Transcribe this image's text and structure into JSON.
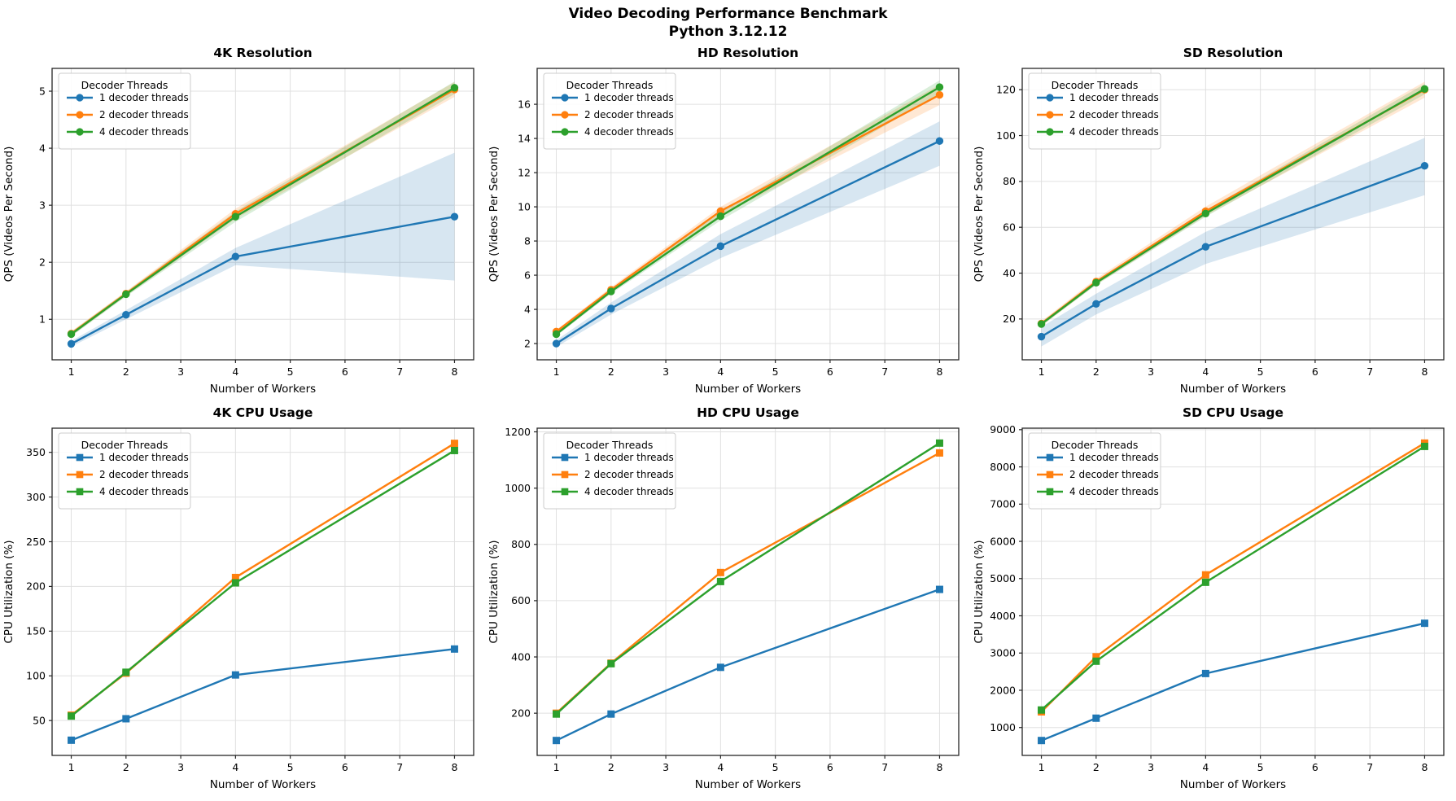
{
  "figure": {
    "suptitle_line1": "Video Decoding Performance Benchmark",
    "suptitle_line2": "Python 3.12.12"
  },
  "palette": {
    "thread1": "#1f77b4",
    "thread2": "#ff7f0e",
    "thread4": "#2ca02c",
    "grid": "#e0e0e0",
    "spine": "#262626",
    "text": "#000000",
    "legend_border": "#cccccc"
  },
  "legend": {
    "title": "Decoder Threads",
    "entries": [
      "1 decoder threads",
      "2 decoder threads",
      "4 decoder threads"
    ]
  },
  "chart_data": [
    {
      "type": "line",
      "title": "4K Resolution",
      "xlabel": "Number of Workers",
      "ylabel": "QPS (Videos Per Second)",
      "marker": "circle",
      "x": [
        1,
        2,
        4,
        8
      ],
      "xticks": [
        1,
        2,
        3,
        4,
        5,
        6,
        7,
        8
      ],
      "xlim": [
        0.65,
        8.35
      ],
      "yticks": [
        1,
        2,
        3,
        4,
        5
      ],
      "ylim": [
        0.29,
        5.4
      ],
      "legend_title": "Decoder Threads",
      "series": [
        {
          "name": "1 decoder threads",
          "color": "#1f77b4",
          "values": [
            0.57,
            1.08,
            2.1,
            2.8
          ],
          "band_low": [
            0.52,
            1.0,
            1.95,
            1.68
          ],
          "band_high": [
            0.62,
            1.16,
            2.25,
            3.92
          ]
        },
        {
          "name": "2 decoder threads",
          "color": "#ff7f0e",
          "values": [
            0.75,
            1.45,
            2.85,
            5.03
          ],
          "band_low": [
            0.71,
            1.41,
            2.76,
            4.9
          ],
          "band_high": [
            0.79,
            1.49,
            2.94,
            5.16
          ]
        },
        {
          "name": "4 decoder threads",
          "color": "#2ca02c",
          "values": [
            0.74,
            1.44,
            2.8,
            5.06
          ],
          "band_low": [
            0.7,
            1.4,
            2.71,
            4.95
          ],
          "band_high": [
            0.78,
            1.48,
            2.89,
            5.17
          ]
        }
      ]
    },
    {
      "type": "line",
      "title": "HD Resolution",
      "xlabel": "Number of Workers",
      "ylabel": "QPS (Videos Per Second)",
      "marker": "circle",
      "x": [
        1,
        2,
        4,
        8
      ],
      "xticks": [
        1,
        2,
        3,
        4,
        5,
        6,
        7,
        8
      ],
      "xlim": [
        0.65,
        8.35
      ],
      "yticks": [
        2,
        4,
        6,
        8,
        10,
        12,
        14,
        16
      ],
      "ylim": [
        1.05,
        18.1
      ],
      "legend_title": "Decoder Threads",
      "series": [
        {
          "name": "1 decoder threads",
          "color": "#1f77b4",
          "values": [
            2.0,
            4.05,
            7.7,
            13.85
          ],
          "band_low": [
            1.8,
            3.7,
            7.0,
            12.4
          ],
          "band_high": [
            2.2,
            4.4,
            8.4,
            15.0
          ]
        },
        {
          "name": "2 decoder threads",
          "color": "#ff7f0e",
          "values": [
            2.7,
            5.15,
            9.75,
            16.55
          ],
          "band_low": [
            2.6,
            5.0,
            9.5,
            15.95
          ],
          "band_high": [
            2.8,
            5.3,
            10.0,
            17.15
          ]
        },
        {
          "name": "4 decoder threads",
          "color": "#2ca02c",
          "values": [
            2.55,
            5.05,
            9.45,
            17.0
          ],
          "band_low": [
            2.45,
            4.92,
            9.2,
            16.6
          ],
          "band_high": [
            2.65,
            5.18,
            9.7,
            17.4
          ]
        }
      ]
    },
    {
      "type": "line",
      "title": "SD Resolution",
      "xlabel": "Number of Workers",
      "ylabel": "QPS (Videos Per Second)",
      "marker": "circle",
      "x": [
        1,
        2,
        4,
        8
      ],
      "xticks": [
        1,
        2,
        3,
        4,
        5,
        6,
        7,
        8
      ],
      "xlim": [
        0.65,
        8.35
      ],
      "yticks": [
        20,
        40,
        60,
        80,
        100,
        120
      ],
      "ylim": [
        2.2,
        129.3
      ],
      "legend_title": "Decoder Threads",
      "series": [
        {
          "name": "1 decoder threads",
          "color": "#1f77b4",
          "values": [
            12.3,
            26.6,
            51.5,
            86.8
          ],
          "band_low": [
            8.0,
            22.0,
            44.0,
            74.0
          ],
          "band_high": [
            16.5,
            31.0,
            58.0,
            99.0
          ]
        },
        {
          "name": "2 decoder threads",
          "color": "#ff7f0e",
          "values": [
            18.0,
            36.3,
            67.0,
            120.0
          ],
          "band_low": [
            17.0,
            35.0,
            65.0,
            116.5
          ],
          "band_high": [
            19.0,
            37.6,
            69.0,
            123.5
          ]
        },
        {
          "name": "4 decoder threads",
          "color": "#2ca02c",
          "values": [
            17.8,
            35.8,
            66.0,
            120.3
          ],
          "band_low": [
            17.0,
            34.8,
            64.6,
            118.0
          ],
          "band_high": [
            18.6,
            36.8,
            67.4,
            122.5
          ]
        }
      ]
    },
    {
      "type": "line",
      "title": "4K CPU Usage",
      "xlabel": "Number of Workers",
      "ylabel": "CPU Utilization (%)",
      "marker": "square",
      "x": [
        1,
        2,
        4,
        8
      ],
      "xticks": [
        1,
        2,
        3,
        4,
        5,
        6,
        7,
        8
      ],
      "xlim": [
        0.65,
        8.35
      ],
      "yticks": [
        50,
        100,
        150,
        200,
        250,
        300,
        350
      ],
      "ylim": [
        11,
        377
      ],
      "legend_title": "Decoder Threads",
      "series": [
        {
          "name": "1 decoder threads",
          "color": "#1f77b4",
          "values": [
            28,
            52,
            101,
            130
          ],
          "band_low": null,
          "band_high": null
        },
        {
          "name": "2 decoder threads",
          "color": "#ff7f0e",
          "values": [
            56,
            103,
            210,
            360
          ],
          "band_low": null,
          "band_high": null
        },
        {
          "name": "4 decoder threads",
          "color": "#2ca02c",
          "values": [
            55,
            104,
            204,
            352
          ],
          "band_low": null,
          "band_high": null
        }
      ]
    },
    {
      "type": "line",
      "title": "HD CPU Usage",
      "xlabel": "Number of Workers",
      "ylabel": "CPU Utilization (%)",
      "marker": "square",
      "x": [
        1,
        2,
        4,
        8
      ],
      "xticks": [
        1,
        2,
        3,
        4,
        5,
        6,
        7,
        8
      ],
      "xlim": [
        0.65,
        8.35
      ],
      "yticks": [
        200,
        400,
        600,
        800,
        1000,
        1200
      ],
      "ylim": [
        50,
        1213
      ],
      "legend_title": "Decoder Threads",
      "series": [
        {
          "name": "1 decoder threads",
          "color": "#1f77b4",
          "values": [
            103,
            197,
            363,
            640
          ],
          "band_low": null,
          "band_high": null
        },
        {
          "name": "2 decoder threads",
          "color": "#ff7f0e",
          "values": [
            200,
            378,
            700,
            1125
          ],
          "band_low": null,
          "band_high": null
        },
        {
          "name": "4 decoder threads",
          "color": "#2ca02c",
          "values": [
            197,
            376,
            668,
            1160
          ],
          "band_low": null,
          "band_high": null
        }
      ]
    },
    {
      "type": "line",
      "title": "SD CPU Usage",
      "xlabel": "Number of Workers",
      "ylabel": "CPU Utilization (%)",
      "marker": "square",
      "x": [
        1,
        2,
        4,
        8
      ],
      "xticks": [
        1,
        2,
        3,
        4,
        5,
        6,
        7,
        8
      ],
      "xlim": [
        0.65,
        8.35
      ],
      "yticks": [
        1000,
        2000,
        3000,
        4000,
        5000,
        6000,
        7000,
        8000,
        9000
      ],
      "ylim": [
        250,
        9040
      ],
      "legend_title": "Decoder Threads",
      "series": [
        {
          "name": "1 decoder threads",
          "color": "#1f77b4",
          "values": [
            650,
            1250,
            2450,
            3800
          ],
          "band_low": null,
          "band_high": null
        },
        {
          "name": "2 decoder threads",
          "color": "#ff7f0e",
          "values": [
            1420,
            2900,
            5100,
            8640
          ],
          "band_low": null,
          "band_high": null
        },
        {
          "name": "4 decoder threads",
          "color": "#2ca02c",
          "values": [
            1470,
            2780,
            4900,
            8550
          ],
          "band_low": null,
          "band_high": null
        }
      ]
    }
  ]
}
